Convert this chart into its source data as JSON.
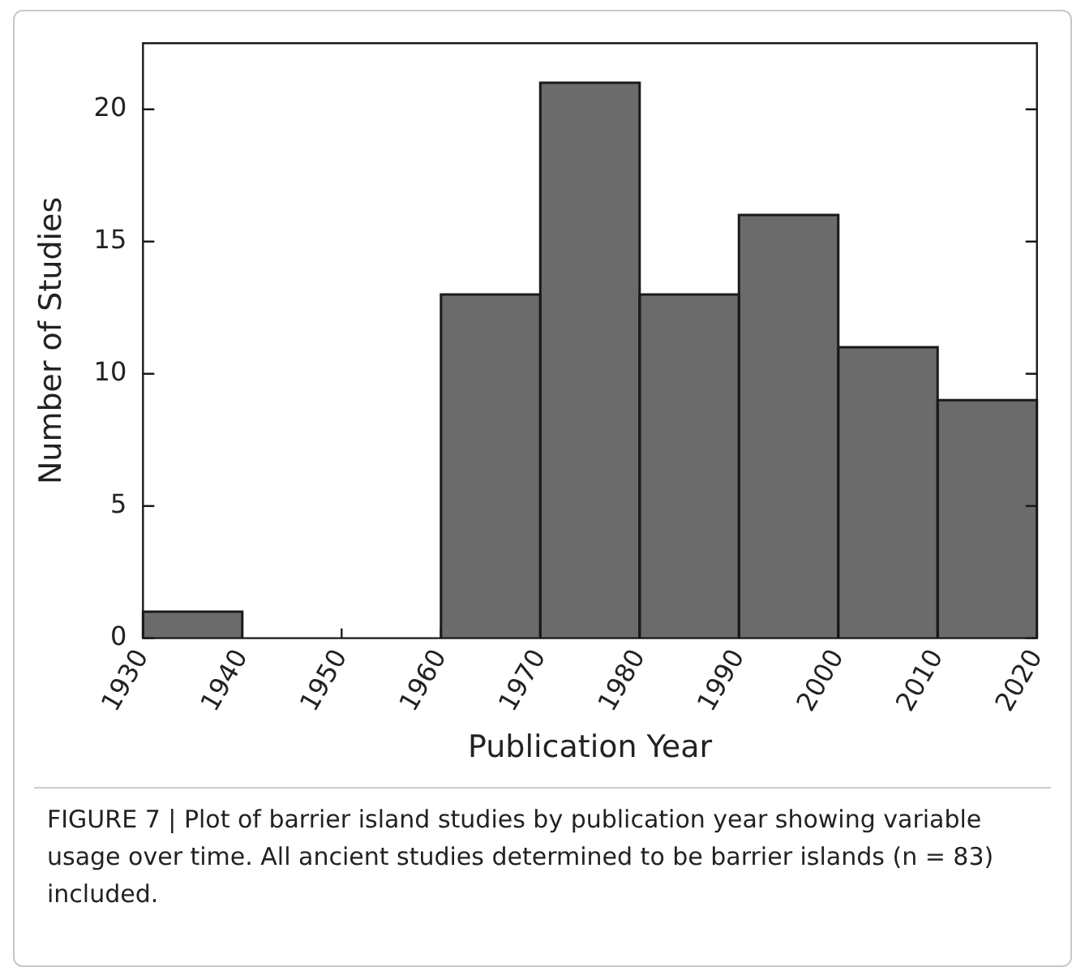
{
  "chart_data": {
    "type": "histogram",
    "xlabel": "Publication Year",
    "ylabel": "Number of Studies",
    "bins": [
      1930,
      1940,
      1950,
      1960,
      1970,
      1980,
      1990,
      2000,
      2010,
      2020
    ],
    "values": [
      1,
      0,
      0,
      13,
      21,
      13,
      16,
      11,
      9
    ],
    "color": "#6b6b6c",
    "xlim": [
      1930,
      2020
    ],
    "xticks": [
      1930,
      1940,
      1950,
      1960,
      1970,
      1980,
      1990,
      2000,
      2010,
      2020
    ],
    "ylim": [
      0,
      22.5
    ],
    "yticks": [
      0,
      5,
      10,
      15,
      20
    ],
    "grid": false,
    "legend": false,
    "annotations": [
      "FIGURE 7 | Plot of barrier island studies by publication year showing variable usage over time. All ancient studies determined to be barrier islands (n = 83) included."
    ]
  }
}
